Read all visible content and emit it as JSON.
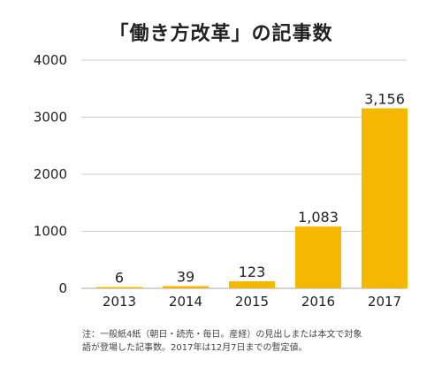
{
  "title": "「働き方改革」の記事数",
  "note": {
    "line1": "注：一般紙4紙（朝日・読売・毎日。産経）の見出しまたは本文で対象",
    "line2": "語が登場した記事数。2017年は12月7日までの暫定値。"
  },
  "colors": {
    "bar": "#f5b800",
    "grid": "#cccccc",
    "text": "#222222"
  },
  "chart_data": {
    "type": "bar",
    "title": "「働き方改革」の記事数",
    "categories": [
      "2013",
      "2014",
      "2015",
      "2016",
      "2017"
    ],
    "values": [
      6,
      39,
      123,
      1083,
      3156
    ],
    "data_labels": [
      "6",
      "39",
      "123",
      "1,083",
      "3,156"
    ],
    "yticks": [
      0,
      1000,
      2000,
      3000,
      4000
    ],
    "ylim": [
      0,
      4000
    ],
    "xlabel": "",
    "ylabel": "",
    "grid": true,
    "legend": "none"
  }
}
